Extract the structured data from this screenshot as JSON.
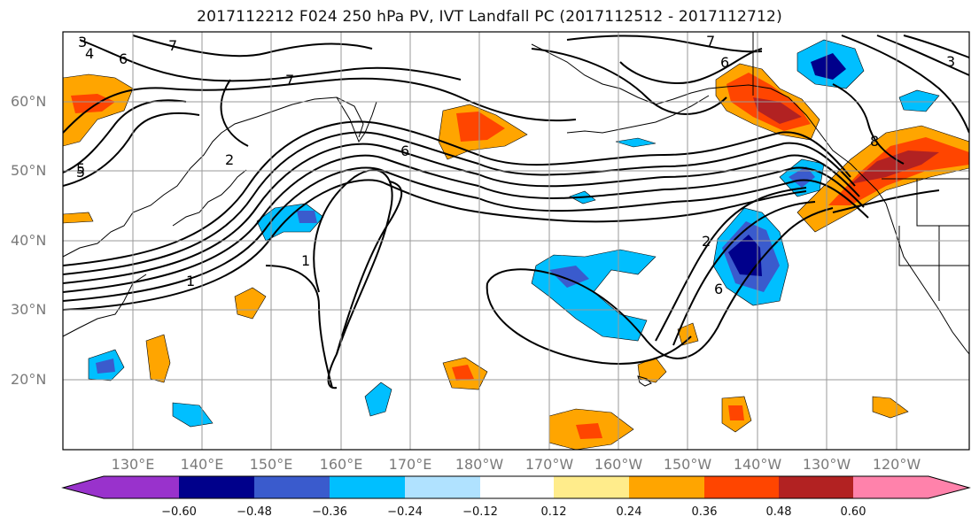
{
  "title": "2017112212 F024 250 hPa PV, IVT Landfall PC (2017112512 - 2017112712)",
  "map": {
    "lat_labels": [
      "60°N",
      "50°N",
      "40°N",
      "30°N",
      "20°N"
    ],
    "lon_labels": [
      "130°E",
      "140°E",
      "150°E",
      "160°E",
      "170°E",
      "180°W",
      "170°W",
      "160°W",
      "150°W",
      "140°W",
      "130°W",
      "120°W"
    ],
    "contour_labels": [
      "3",
      "4",
      "5",
      "6",
      "7",
      "7",
      "7",
      "6",
      "6",
      "5",
      "3",
      "2",
      "1",
      "1",
      "2",
      "6",
      "8"
    ]
  },
  "colorbar": {
    "labels": [
      "−0.60",
      "−0.48",
      "−0.36",
      "−0.24",
      "−0.12",
      "0.12",
      "0.24",
      "0.36",
      "0.48",
      "0.60"
    ],
    "colors": [
      "#9932cc",
      "#00008b",
      "#3a5bcd",
      "#00bfff",
      "#b0e2ff",
      "#ffffff",
      "#ffec8b",
      "#ffa500",
      "#ff4500",
      "#b22222",
      "#ff82ab"
    ]
  }
}
